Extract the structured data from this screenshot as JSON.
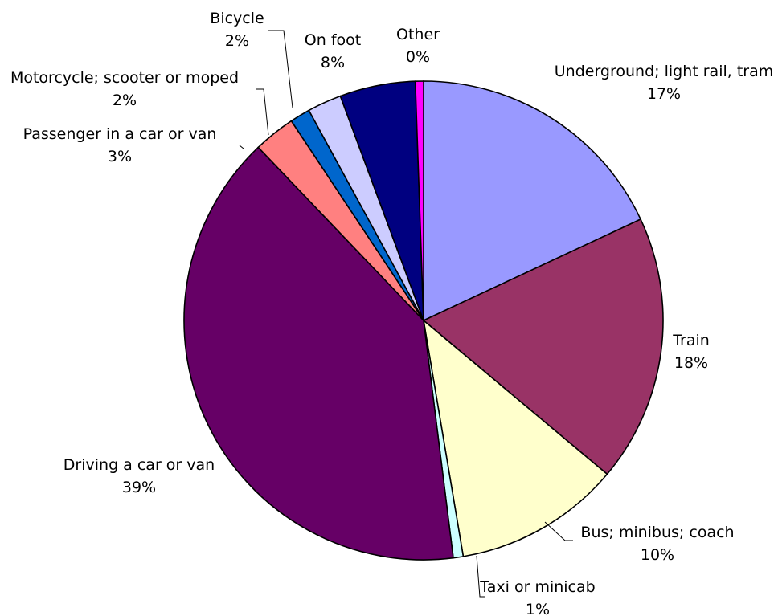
{
  "chart_data": {
    "type": "pie",
    "slices": [
      {
        "label": "Underground; light rail, tram",
        "value": 17,
        "value_label": "17%",
        "color": "#9999FF"
      },
      {
        "label": "Train",
        "value": 18,
        "value_label": "18%",
        "color": "#993366"
      },
      {
        "label": "Bus; minibus; coach",
        "value": 10,
        "value_label": "10%",
        "color": "#FFFFCC"
      },
      {
        "label": "Taxi or minicab",
        "value": 1,
        "value_label": "1%",
        "color": "#CCFFFF"
      },
      {
        "label": "Driving a car or van",
        "value": 39,
        "value_label": "39%",
        "color": "#660066"
      },
      {
        "label": "Passenger in a car or van",
        "value": 3,
        "value_label": "3%",
        "color": "#FF8080"
      },
      {
        "label": "Motorcycle; scooter or moped",
        "value": 2,
        "value_label": "2%",
        "color": "#0066CC"
      },
      {
        "label": "Bicycle",
        "value": 2,
        "value_label": "2%",
        "color": "#CCCCFF"
      },
      {
        "label": "On foot",
        "value": 8,
        "value_label": "8%",
        "color": "#000080"
      },
      {
        "label": "Other",
        "value": 0,
        "value_label": "0%",
        "color": "#FF00FF"
      }
    ],
    "start_angle": "12 o'clock",
    "direction": "clockwise",
    "legend": "none",
    "grid": false
  }
}
